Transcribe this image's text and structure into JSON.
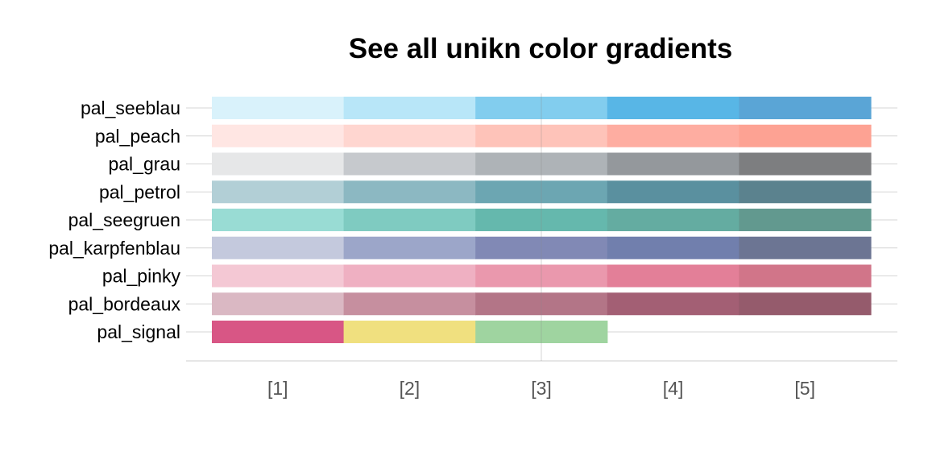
{
  "chart_data": {
    "type": "heatmap",
    "title": "See all unikn color gradients",
    "xlabel": "",
    "ylabel": "",
    "x_tick_labels": [
      "[1]",
      "[2]",
      "[3]",
      "[4]",
      "[5]"
    ],
    "grid": true,
    "legend": "none",
    "palettes": [
      {
        "name": "pal_seeblau",
        "colors": [
          "#d9f2fb",
          "#b8e6f8",
          "#82cdee",
          "#58b6e6",
          "#5aa5d6"
        ]
      },
      {
        "name": "pal_peach",
        "colors": [
          "#ffe6e3",
          "#ffd6d0",
          "#fec3b9",
          "#feada1",
          "#fda293"
        ]
      },
      {
        "name": "pal_grau",
        "colors": [
          "#e6e7e8",
          "#c6c9cd",
          "#aeb3b7",
          "#94989c",
          "#7d7e80"
        ]
      },
      {
        "name": "pal_petrol",
        "colors": [
          "#b2cfd6",
          "#8cb8c2",
          "#6ca6b2",
          "#5a909f",
          "#5b828e"
        ]
      },
      {
        "name": "pal_seegruen",
        "colors": [
          "#99dcd4",
          "#7fcbc1",
          "#65b8ad",
          "#64aca1",
          "#62998f"
        ]
      },
      {
        "name": "pal_karpfenblau",
        "colors": [
          "#c4c9dd",
          "#9ca6c9",
          "#8189b5",
          "#717fad",
          "#6c7593"
        ]
      },
      {
        "name": "pal_pinky",
        "colors": [
          "#f4c8d4",
          "#efb0c2",
          "#ea98ad",
          "#e37f98",
          "#d17589"
        ]
      },
      {
        "name": "pal_bordeaux",
        "colors": [
          "#dab8c3",
          "#c68f9f",
          "#b37587",
          "#a35f74",
          "#955b6c"
        ]
      },
      {
        "name": "pal_signal",
        "colors": [
          "#d85685",
          "#f0e07f",
          "#9fd4a0"
        ]
      }
    ]
  }
}
